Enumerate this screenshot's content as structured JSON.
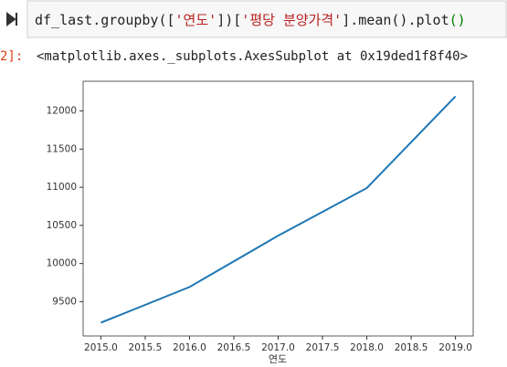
{
  "cell": {
    "code": [
      "df_last.groupby([",
      "'연도'",
      "])[",
      "'평당 분양가격'",
      "].mean().plot",
      "()"
    ]
  },
  "output": {
    "prompt": "2]:",
    "text": "<matplotlib.axes._subplots.AxesSubplot at 0x19ded1f8f40>"
  },
  "chart_data": {
    "type": "line",
    "xlabel": "연도",
    "x": [
      2015,
      2016,
      2017,
      2018,
      2019
    ],
    "values": [
      9224,
      9692,
      10365,
      10990,
      12192
    ],
    "color": "#1f77b4",
    "xlim": [
      2014.8,
      2019.2
    ],
    "xticks": [
      {
        "value": 2015,
        "label": "2015.0"
      },
      {
        "value": 2015.5,
        "label": "2015.5"
      },
      {
        "value": 2016,
        "label": "2016.0"
      },
      {
        "value": 2016.5,
        "label": "2016.5"
      },
      {
        "value": 2017,
        "label": "2017.0"
      },
      {
        "value": 2017.5,
        "label": "2017.5"
      },
      {
        "value": 2018,
        "label": "2018.0"
      },
      {
        "value": 2018.5,
        "label": "2018.5"
      },
      {
        "value": 2019,
        "label": "2019.0"
      }
    ],
    "ylim": [
      9050,
      12390
    ],
    "yticks": [
      9500,
      10000,
      10500,
      11000,
      11500,
      12000
    ]
  }
}
